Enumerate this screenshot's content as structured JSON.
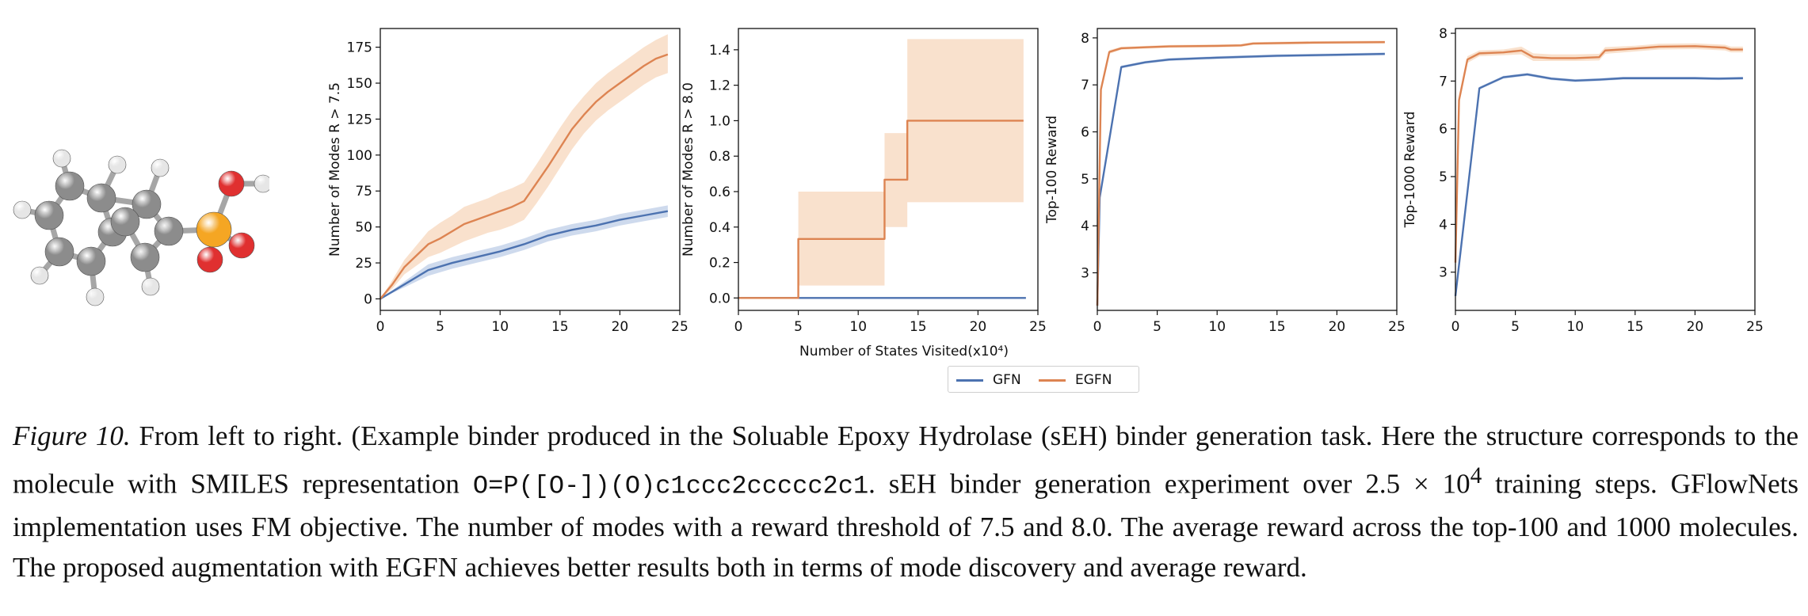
{
  "figure": {
    "shared_xlabel": "Number of States Visited(x10⁴)",
    "legend": [
      {
        "name": "GFN",
        "color": "#4c72b0"
      },
      {
        "name": "EGFN",
        "color": "#dd8452"
      }
    ],
    "band_colors": {
      "GFN": "#c5d3ea",
      "EGFN": "#f8dcc4"
    },
    "molecule": {
      "atom_colors": {
        "carbon": "#8c8c8c",
        "hydrogen": "#e6e6e6",
        "phosphorus": "#f5a623",
        "oxygen": "#e03030"
      }
    }
  },
  "caption": {
    "label": "Figure 10.",
    "part1": " From left to right. (Example binder produced in the Soluable Epoxy Hydrolase (sEH) binder generation task. Here the structure corresponds to the molecule with SMILES representation ",
    "smiles": "O=P([O-])(O)c1ccc2ccccc2c1",
    "part2": ". sEH binder generation experiment over 2.5 × 10",
    "exp": "4",
    "part3": " training steps. GFlowNets implementation uses FM objective. The number of modes with a reward threshold of 7.5 and 8.0. The average reward across the top-100 and 1000 molecules. The proposed augmentation with EGFN achieves better results both in terms of mode discovery and average reward."
  },
  "chart_data": [
    {
      "type": "line",
      "ylabel": "Number of Modes R > 7.5",
      "xlim": [
        0,
        25
      ],
      "ylim": [
        -8,
        188
      ],
      "xticks": [
        0,
        5,
        10,
        15,
        20,
        25
      ],
      "yticks": [
        0,
        25,
        50,
        75,
        100,
        125,
        150,
        175
      ],
      "series": [
        {
          "name": "GFN",
          "x": [
            0,
            2,
            4,
            6,
            8,
            10,
            12,
            14,
            16,
            18,
            20,
            22,
            24
          ],
          "y": [
            0,
            10,
            20,
            25,
            29,
            33,
            38,
            44,
            48,
            51,
            55,
            58,
            61
          ],
          "band": [
            [
              0,
              0
            ],
            [
              8,
              12
            ],
            [
              16,
              24
            ],
            [
              21,
              29
            ],
            [
              25,
              33
            ],
            [
              29,
              37
            ],
            [
              34,
              42
            ],
            [
              40,
              48
            ],
            [
              44,
              52
            ],
            [
              47,
              55
            ],
            [
              51,
              59
            ],
            [
              54,
              62
            ],
            [
              57,
              65
            ]
          ]
        },
        {
          "name": "EGFN",
          "x": [
            0,
            1,
            2,
            3,
            4,
            5,
            6,
            7,
            8,
            9,
            10,
            11,
            12,
            13,
            14,
            15,
            16,
            17,
            18,
            19,
            20,
            21,
            22,
            23,
            24
          ],
          "y": [
            0,
            10,
            22,
            30,
            38,
            42,
            47,
            52,
            55,
            58,
            61,
            64,
            68,
            80,
            92,
            105,
            118,
            128,
            137,
            144,
            150,
            156,
            162,
            167,
            170
          ],
          "band": [
            [
              0,
              0
            ],
            [
              7,
              13
            ],
            [
              17,
              27
            ],
            [
              23,
              37
            ],
            [
              29,
              47
            ],
            [
              32,
              53
            ],
            [
              36,
              58
            ],
            [
              40,
              64
            ],
            [
              43,
              67
            ],
            [
              46,
              70
            ],
            [
              48,
              74
            ],
            [
              51,
              77
            ],
            [
              55,
              81
            ],
            [
              66,
              93
            ],
            [
              78,
              106
            ],
            [
              91,
              119
            ],
            [
              104,
              131
            ],
            [
              115,
              141
            ],
            [
              124,
              150
            ],
            [
              131,
              157
            ],
            [
              137,
              163
            ],
            [
              143,
              169
            ],
            [
              149,
              175
            ],
            [
              154,
              180
            ],
            [
              157,
              184
            ]
          ]
        }
      ]
    },
    {
      "type": "line",
      "ylabel": "Number of Modes R > 8.0",
      "xlim": [
        0,
        25
      ],
      "ylim": [
        -0.07,
        1.52
      ],
      "xticks": [
        0,
        5,
        10,
        15,
        20,
        25
      ],
      "yticks": [
        0.0,
        0.2,
        0.4,
        0.6,
        0.8,
        1.0,
        1.2,
        1.4
      ],
      "series": [
        {
          "name": "GFN",
          "x": [
            0,
            24
          ],
          "y": [
            0,
            0
          ],
          "band": [
            [
              0,
              0
            ],
            [
              0,
              0
            ]
          ]
        },
        {
          "name": "EGFN",
          "x": [
            0,
            5,
            5,
            12.2,
            12.2,
            14.1,
            14.1,
            23.8
          ],
          "y": [
            0,
            0,
            0.333,
            0.333,
            0.667,
            0.667,
            1.0,
            1.0
          ],
          "band": [
            [
              0,
              0
            ],
            [
              0,
              0
            ],
            [
              0.07,
              0.6
            ],
            [
              0.07,
              0.6
            ],
            [
              0.4,
              0.93
            ],
            [
              0.4,
              0.93
            ],
            [
              0.54,
              1.46
            ],
            [
              0.54,
              1.46
            ]
          ]
        }
      ]
    },
    {
      "type": "line",
      "ylabel": "Top-100 Reward",
      "xlim": [
        0,
        25
      ],
      "ylim": [
        2.2,
        8.2
      ],
      "xticks": [
        0,
        5,
        10,
        15,
        20,
        25
      ],
      "yticks": [
        3,
        4,
        5,
        6,
        7,
        8
      ],
      "series": [
        {
          "name": "GFN",
          "x": [
            0,
            0.2,
            2,
            4,
            6,
            10,
            15,
            20,
            24
          ],
          "y": [
            2.3,
            4.6,
            7.38,
            7.48,
            7.54,
            7.58,
            7.62,
            7.64,
            7.66
          ],
          "band": [
            [
              2.3,
              2.3
            ],
            [
              4.55,
              4.65
            ],
            [
              7.35,
              7.41
            ],
            [
              7.45,
              7.51
            ],
            [
              7.51,
              7.57
            ],
            [
              7.55,
              7.61
            ],
            [
              7.59,
              7.65
            ],
            [
              7.61,
              7.67
            ],
            [
              7.63,
              7.69
            ]
          ]
        },
        {
          "name": "EGFN",
          "x": [
            0,
            0.3,
            1,
            2,
            4,
            6,
            10,
            12,
            13,
            18,
            24
          ],
          "y": [
            2.3,
            6.9,
            7.7,
            7.78,
            7.8,
            7.82,
            7.83,
            7.84,
            7.88,
            7.9,
            7.91
          ],
          "band": [
            [
              2.3,
              2.3
            ],
            [
              6.85,
              6.95
            ],
            [
              7.66,
              7.74
            ],
            [
              7.75,
              7.81
            ],
            [
              7.77,
              7.83
            ],
            [
              7.79,
              7.85
            ],
            [
              7.8,
              7.86
            ],
            [
              7.81,
              7.87
            ],
            [
              7.85,
              7.91
            ],
            [
              7.87,
              7.93
            ],
            [
              7.88,
              7.94
            ]
          ]
        }
      ]
    },
    {
      "type": "line",
      "ylabel": "Top-1000 Reward",
      "xlim": [
        0,
        25
      ],
      "ylim": [
        2.2,
        8.1
      ],
      "xticks": [
        0,
        5,
        10,
        15,
        20,
        25
      ],
      "yticks": [
        3,
        4,
        5,
        6,
        7,
        8
      ],
      "series": [
        {
          "name": "GFN",
          "x": [
            0,
            2,
            4,
            6,
            8,
            10,
            12,
            14,
            16,
            18,
            20,
            22,
            24
          ],
          "y": [
            2.5,
            6.85,
            7.08,
            7.14,
            7.05,
            7.01,
            7.03,
            7.06,
            7.06,
            7.06,
            7.06,
            7.05,
            7.06
          ],
          "band": [
            [
              2.5,
              2.5
            ],
            [
              6.82,
              6.88
            ],
            [
              7.05,
              7.11
            ],
            [
              7.11,
              7.17
            ],
            [
              7.02,
              7.08
            ],
            [
              6.98,
              7.04
            ],
            [
              7.0,
              7.06
            ],
            [
              7.03,
              7.09
            ],
            [
              7.03,
              7.09
            ],
            [
              7.03,
              7.09
            ],
            [
              7.03,
              7.09
            ],
            [
              7.02,
              7.08
            ],
            [
              7.03,
              7.09
            ]
          ]
        },
        {
          "name": "EGFN",
          "x": [
            0,
            0.3,
            1,
            2,
            4,
            5.5,
            6.5,
            8,
            10,
            12,
            12.5,
            15,
            17,
            20,
            22.5,
            23,
            24
          ],
          "y": [
            3.2,
            6.6,
            7.45,
            7.58,
            7.6,
            7.64,
            7.5,
            7.48,
            7.48,
            7.5,
            7.64,
            7.68,
            7.72,
            7.73,
            7.7,
            7.66,
            7.66
          ],
          "band": [
            [
              3.2,
              3.2
            ],
            [
              6.5,
              6.7
            ],
            [
              7.38,
              7.52
            ],
            [
              7.52,
              7.64
            ],
            [
              7.54,
              7.66
            ],
            [
              7.56,
              7.72
            ],
            [
              7.42,
              7.58
            ],
            [
              7.42,
              7.56
            ],
            [
              7.42,
              7.56
            ],
            [
              7.43,
              7.57
            ],
            [
              7.57,
              7.71
            ],
            [
              7.62,
              7.74
            ],
            [
              7.66,
              7.78
            ],
            [
              7.67,
              7.79
            ],
            [
              7.64,
              7.76
            ],
            [
              7.6,
              7.72
            ],
            [
              7.6,
              7.72
            ]
          ]
        }
      ]
    }
  ]
}
